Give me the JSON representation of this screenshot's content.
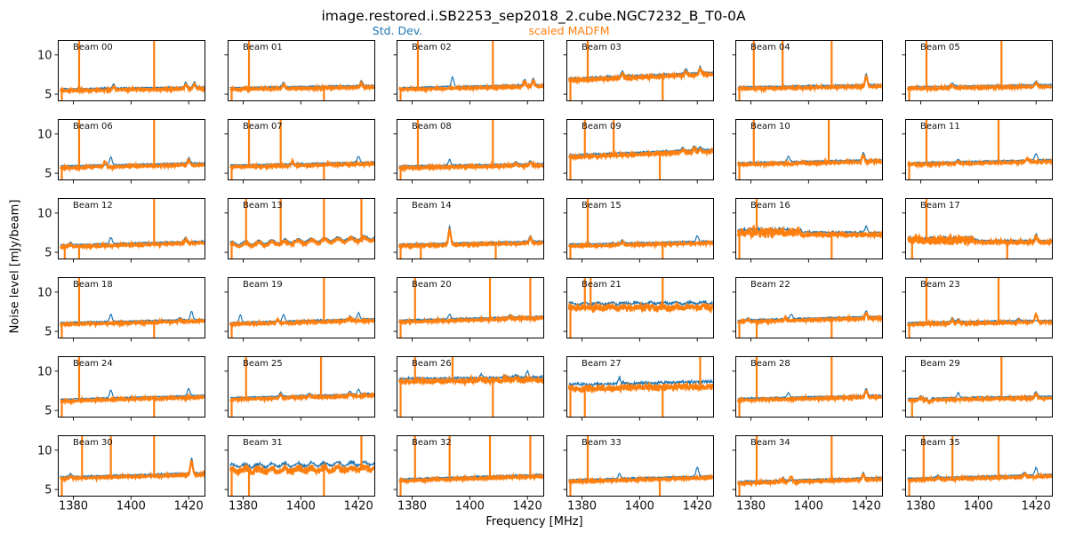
{
  "title": "image.restored.i.SB2253_sep2018_2.cube.NGC7232_B_T0-0A",
  "legend": [
    {
      "label": "Std. Dev.",
      "color": "#1f77b4"
    },
    {
      "label": "scaled MADFM",
      "color": "#ff7f0e"
    }
  ],
  "axes": {
    "xlabel": "Frequency [MHz]",
    "ylabel": "Noise level [mJy/beam]",
    "x_ticks": [
      1380,
      1400,
      1420
    ],
    "y_ticks": [
      5,
      10
    ],
    "xlim": [
      1374.6,
      1425.8
    ],
    "ylim": [
      4.1,
      11.9
    ]
  },
  "chart_data": {
    "type": "line",
    "x_unit": "MHz",
    "y_unit": "mJy/beam",
    "x_range_mhz": [
      1375.5,
      1425.4
    ],
    "series_names": [
      "Std. Dev.",
      "scaled MADFM"
    ],
    "series_colors": {
      "std_dev": "#1f77b4",
      "madfm": "#ff7f0e"
    },
    "subplots": [
      {
        "label": "Beam 00",
        "madfm": [
          5.45,
          5.7
        ],
        "up": [
          1382,
          1408
        ],
        "down": [
          1376
        ],
        "bumps": [
          [
            1394,
            0.5,
            "x"
          ],
          [
            1419,
            0.6,
            "x"
          ],
          [
            1422,
            0.7,
            "x"
          ]
        ]
      },
      {
        "label": "Beam 01",
        "madfm": [
          5.6,
          5.9
        ],
        "up": [
          1382
        ],
        "down": [
          1376,
          1408
        ],
        "bumps": [
          [
            1394,
            0.6,
            "x"
          ],
          [
            1421,
            0.6,
            "x"
          ]
        ]
      },
      {
        "label": "Beam 02",
        "madfm": [
          5.6,
          6.0
        ],
        "up": [
          1382,
          1408
        ],
        "down": [
          1376
        ],
        "bumps": [
          [
            1394,
            1.2,
            "b"
          ],
          [
            1419,
            0.7,
            "x"
          ],
          [
            1422,
            0.8,
            "x"
          ]
        ]
      },
      {
        "label": "Beam 03",
        "madfm": [
          6.75,
          7.55
        ],
        "gap": 0.25,
        "noise": 0.24,
        "up": [
          1382
        ],
        "down": [
          1376,
          1408
        ],
        "bumps": [
          [
            1394,
            0.6,
            "x"
          ],
          [
            1416,
            0.6,
            "x"
          ],
          [
            1421,
            0.8,
            "x"
          ]
        ]
      },
      {
        "label": "Beam 04",
        "madfm": [
          5.7,
          6.0
        ],
        "up": [
          1381,
          1391,
          1408
        ],
        "down": [
          1376
        ],
        "bumps": [
          [
            1420,
            1.4,
            "x"
          ]
        ]
      },
      {
        "label": "Beam 05",
        "madfm": [
          5.7,
          6.0
        ],
        "up": [
          1382,
          1408
        ],
        "down": [
          1376
        ],
        "bumps": [
          [
            1391,
            0.4,
            "x"
          ],
          [
            1420,
            0.5,
            "x"
          ]
        ]
      },
      {
        "label": "Beam 06",
        "madfm": [
          5.7,
          6.1
        ],
        "up": [
          1382,
          1408
        ],
        "down": [
          1376
        ],
        "bumps": [
          [
            1391,
            0.8,
            "o"
          ],
          [
            1393,
            1.0,
            "b"
          ],
          [
            1420,
            0.7,
            "x"
          ]
        ]
      },
      {
        "label": "Beam 07",
        "madfm": [
          5.8,
          6.2
        ],
        "up": [
          1382,
          1393
        ],
        "down": [
          1376,
          1408
        ],
        "bumps": [
          [
            1397,
            0.7,
            "o"
          ],
          [
            1420,
            0.8,
            "b"
          ]
        ]
      },
      {
        "label": "Beam 08",
        "madfm": [
          5.7,
          6.0
        ],
        "up": [
          1382,
          1408
        ],
        "down": [
          1376
        ],
        "bumps": [
          [
            1393,
            0.7,
            "b"
          ],
          [
            1416,
            0.3,
            "x"
          ],
          [
            1421,
            0.4,
            "x"
          ]
        ]
      },
      {
        "label": "Beam 09",
        "madfm": [
          7.05,
          7.8
        ],
        "gap": 0.25,
        "noise": 0.24,
        "up": [
          1381,
          1391
        ],
        "down": [
          1376,
          1407
        ],
        "bumps": [
          [
            1415,
            0.4,
            "x"
          ],
          [
            1419,
            0.5,
            "x"
          ],
          [
            1421,
            0.4,
            "x"
          ]
        ]
      },
      {
        "label": "Beam 10",
        "madfm": [
          6.1,
          6.5
        ],
        "up": [
          1381,
          1407
        ],
        "down": [
          1376
        ],
        "bumps": [
          [
            1393,
            0.7,
            "b"
          ],
          [
            1419,
            1.0,
            "x"
          ]
        ]
      },
      {
        "label": "Beam 11",
        "madfm": [
          6.1,
          6.5
        ],
        "up": [
          1382,
          1407
        ],
        "down": [
          1376
        ],
        "bumps": [
          [
            1393,
            0.3,
            "x"
          ],
          [
            1417,
            0.5,
            "o"
          ],
          [
            1420,
            0.8,
            "b"
          ]
        ]
      },
      {
        "label": "Beam 12",
        "madfm": [
          5.7,
          6.2
        ],
        "up": [
          1408
        ],
        "down": [
          1377,
          1382
        ],
        "bumps": [
          [
            1379,
            0.3,
            "x"
          ],
          [
            1393,
            0.8,
            "b"
          ],
          [
            1419,
            0.6,
            "x"
          ]
        ]
      },
      {
        "label": "Beam 13",
        "madfm": [
          5.9,
          6.7
        ],
        "wave": 0.22,
        "up": [
          1381,
          1393,
          1408,
          1421
        ],
        "down": [
          1376
        ],
        "bumps": []
      },
      {
        "label": "Beam 14",
        "madfm": [
          5.8,
          6.2
        ],
        "up": [],
        "down": [
          1376,
          1383,
          1409
        ],
        "bumps": [
          [
            1393,
            2.1,
            "x"
          ],
          [
            1421,
            0.7,
            "x"
          ]
        ]
      },
      {
        "label": "Beam 15",
        "madfm": [
          5.8,
          6.2
        ],
        "up": [
          1382
        ],
        "down": [
          1376,
          1408
        ],
        "bumps": [
          [
            1394,
            0.4,
            "x"
          ],
          [
            1420,
            0.7,
            "b"
          ]
        ]
      },
      {
        "label": "Beam 16",
        "madfm": [
          7.3,
          7.25
        ],
        "gap": 0.3,
        "noise": 0.28,
        "noisy_until": 1397,
        "up": [
          1382
        ],
        "down": [
          1376,
          1408
        ],
        "bumps": [
          [
            1420,
            0.7,
            "b"
          ]
        ]
      },
      {
        "label": "Beam 17",
        "madfm": [
          6.3,
          6.3
        ],
        "gap": 0.2,
        "noise": 0.26,
        "noisy_until": 1398,
        "up": [
          1382
        ],
        "down": [
          1377,
          1410
        ],
        "bumps": [
          [
            1420,
            0.8,
            "x"
          ]
        ]
      },
      {
        "label": "Beam 18",
        "madfm": [
          5.9,
          6.3
        ],
        "up": [
          1382
        ],
        "down": [
          1376,
          1408
        ],
        "bumps": [
          [
            1393,
            0.9,
            "b"
          ],
          [
            1417,
            0.3,
            "x"
          ],
          [
            1421,
            1.1,
            "b"
          ]
        ]
      },
      {
        "label": "Beam 19",
        "madfm": [
          5.9,
          6.4
        ],
        "up": [
          1408
        ],
        "down": [
          1376
        ],
        "bumps": [
          [
            1379,
            0.9,
            "b"
          ],
          [
            1392,
            0.5,
            "o"
          ],
          [
            1394,
            0.8,
            "b"
          ],
          [
            1417,
            0.4,
            "x"
          ],
          [
            1420,
            0.8,
            "b"
          ]
        ]
      },
      {
        "label": "Beam 20",
        "madfm": [
          6.2,
          6.7
        ],
        "up": [
          1381,
          1407,
          1421
        ],
        "down": [
          1376
        ],
        "bumps": [
          [
            1393,
            0.6,
            "b"
          ],
          [
            1414,
            0.3,
            "x"
          ]
        ]
      },
      {
        "label": "Beam 21",
        "madfm": [
          8.0,
          8.15
        ],
        "gap": 0.5,
        "noise": 0.42,
        "wave": 0.12,
        "up": [
          1381,
          1383,
          1408
        ],
        "down": [
          1376
        ],
        "bumps": []
      },
      {
        "label": "Beam 22",
        "madfm": [
          6.2,
          6.7
        ],
        "up": [],
        "down": [
          1376,
          1382,
          1408
        ],
        "bumps": [
          [
            1379,
            0.3,
            "x"
          ],
          [
            1392,
            0.4,
            "o"
          ],
          [
            1394,
            0.6,
            "b"
          ],
          [
            1420,
            0.7,
            "x"
          ]
        ]
      },
      {
        "label": "Beam 23",
        "madfm": [
          5.9,
          6.2
        ],
        "up": [
          1382,
          1407
        ],
        "down": [
          1376
        ],
        "bumps": [
          [
            1391,
            0.5,
            "x"
          ],
          [
            1393,
            0.4,
            "x"
          ],
          [
            1414,
            0.3,
            "x"
          ],
          [
            1420,
            1.1,
            "o"
          ]
        ]
      },
      {
        "label": "Beam 24",
        "madfm": [
          6.2,
          6.7
        ],
        "up": [
          1382
        ],
        "down": [
          1376,
          1408
        ],
        "bumps": [
          [
            1393,
            1.0,
            "b"
          ],
          [
            1420,
            0.9,
            "b"
          ]
        ]
      },
      {
        "label": "Beam 25",
        "madfm": [
          6.4,
          6.9
        ],
        "up": [
          1381,
          1407
        ],
        "down": [
          1376
        ],
        "bumps": [
          [
            1393,
            0.5,
            "x"
          ],
          [
            1403,
            0.3,
            "x"
          ],
          [
            1417,
            0.4,
            "x"
          ],
          [
            1420,
            0.6,
            "b"
          ]
        ]
      },
      {
        "label": "Beam 26",
        "madfm": [
          8.7,
          8.9
        ],
        "gap": 0.35,
        "noise": 0.32,
        "up": [
          1381,
          1394
        ],
        "down": [
          1376,
          1408
        ],
        "bumps": [
          [
            1404,
            0.4,
            "x"
          ],
          [
            1412,
            0.3,
            "x"
          ],
          [
            1416,
            0.4,
            "x"
          ],
          [
            1420,
            0.8,
            "b"
          ]
        ]
      },
      {
        "label": "Beam 27",
        "madfm": [
          7.75,
          8.1
        ],
        "gap": 0.55,
        "noise": 0.45,
        "up": [
          1421
        ],
        "down": [
          1376,
          1381,
          1408
        ],
        "bumps": [
          [
            1393,
            0.7,
            "b"
          ]
        ]
      },
      {
        "label": "Beam 28",
        "madfm": [
          6.3,
          6.7
        ],
        "up": [
          1382,
          1408
        ],
        "down": [
          1376
        ],
        "bumps": [
          [
            1393,
            0.6,
            "b"
          ],
          [
            1420,
            0.9,
            "x"
          ]
        ]
      },
      {
        "label": "Beam 29",
        "madfm": [
          6.3,
          6.6
        ],
        "up": [
          1408
        ],
        "down": [
          1377
        ],
        "bumps": [
          [
            1380,
            0.3,
            "x"
          ],
          [
            1383,
            -0.35,
            "x"
          ],
          [
            1393,
            0.6,
            "b"
          ],
          [
            1420,
            0.6,
            "x"
          ]
        ]
      },
      {
        "label": "Beam 30",
        "madfm": [
          6.4,
          6.9
        ],
        "up": [
          1383,
          1393,
          1408
        ],
        "down": [
          1376
        ],
        "bumps": [
          [
            1379,
            0.3,
            "x"
          ],
          [
            1421,
            1.9,
            "x"
          ]
        ]
      },
      {
        "label": "Beam 31",
        "madfm": [
          7.4,
          7.7
        ],
        "gap": 0.6,
        "noise": 0.42,
        "wave": 0.22,
        "up": [
          1421
        ],
        "down": [
          1376,
          1382,
          1408
        ],
        "bumps": []
      },
      {
        "label": "Beam 32",
        "madfm": [
          6.1,
          6.7
        ],
        "up": [
          1381,
          1393,
          1407,
          1421
        ],
        "down": [
          1376
        ],
        "bumps": []
      },
      {
        "label": "Beam 33",
        "madfm": [
          6.0,
          6.5
        ],
        "up": [
          1382
        ],
        "down": [
          1376,
          1407
        ],
        "bumps": [
          [
            1393,
            0.6,
            "b"
          ],
          [
            1420,
            1.2,
            "b"
          ]
        ]
      },
      {
        "label": "Beam 34",
        "madfm": [
          5.8,
          6.3
        ],
        "up": [
          1382,
          1408
        ],
        "down": [
          1376
        ],
        "bumps": [
          [
            1391,
            0.3,
            "x"
          ],
          [
            1394,
            0.8,
            "o"
          ],
          [
            1419,
            0.7,
            "x"
          ]
        ]
      },
      {
        "label": "Beam 35",
        "madfm": [
          6.2,
          6.7
        ],
        "up": [
          1381,
          1391,
          1407
        ],
        "down": [
          1376
        ],
        "bumps": [
          [
            1386,
            0.3,
            "x"
          ],
          [
            1416,
            0.4,
            "x"
          ],
          [
            1420,
            0.9,
            "b"
          ]
        ]
      }
    ]
  }
}
